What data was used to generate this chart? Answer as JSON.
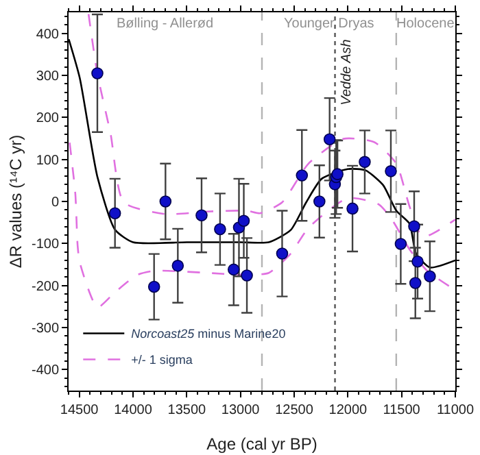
{
  "chart_data": {
    "type": "scatter",
    "xlabel": "Age (cal yr BP)",
    "ylabel": "ΔR values (¹⁴C yr)",
    "xlim": [
      14600,
      11000
    ],
    "xticks": [
      14500,
      14000,
      13500,
      13000,
      12500,
      12000,
      11500,
      11000
    ],
    "ylim": [
      -450,
      450
    ],
    "yticks": [
      -400,
      -300,
      -200,
      -100,
      0,
      100,
      200,
      300,
      400
    ],
    "grid": false,
    "legend": "bottom left",
    "series": [
      {
        "color": "#1010c8",
        "marker": "circle",
        "x": [
          14332,
          14168,
          13698,
          13362,
          13190,
          13014,
          12969,
          13804,
          13583,
          13063,
          12940,
          12612,
          12428,
          12265,
          12170,
          12121,
          12109,
          12097,
          11957,
          11843,
          11600,
          11383,
          11508,
          11351,
          11372,
          11237
        ],
        "values": [
          305,
          -28,
          0,
          -33,
          -66,
          -62,
          -46,
          -203,
          -153,
          -162,
          -176,
          -124,
          62,
          0,
          148,
          41,
          58,
          65,
          -17,
          94,
          72,
          -59,
          -101,
          -143,
          -194,
          -178
        ],
        "errors": [
          140,
          82,
          90,
          88,
          85,
          116,
          88,
          78,
          88,
          85,
          89,
          102,
          108,
          86,
          98,
          80,
          88,
          80,
          102,
          75,
          97,
          83,
          95,
          88,
          84,
          83
        ]
      },
      {
        "type": "line",
        "name": "Norcoast25 minus Marine20",
        "color": "#000000",
        "line_style": "solid",
        "marker": "none",
        "x": [
          14598,
          14496,
          14332,
          14168,
          14000,
          13500,
          13000,
          12736,
          12532,
          12388,
          12244,
          12002,
          11835,
          11672,
          11549,
          11426,
          11365,
          11237,
          11000
        ],
        "values": [
          386,
          294,
          59,
          -67,
          -97,
          -97,
          -97,
          -97,
          -68,
          -2,
          54,
          77,
          74,
          39,
          -22,
          -53,
          -124,
          -157,
          -140
        ]
      },
      {
        "type": "line",
        "name": "+/- 1 sigma",
        "color": "#e070e0",
        "line_style": "dashed",
        "marker": "none",
        "x": [
          14414,
          14332,
          14209,
          14086,
          13698,
          13308,
          12940,
          12817,
          12612,
          12367,
          12041,
          11754,
          11549,
          11426,
          11303,
          11000
        ],
        "values": [
          446,
          304,
          161,
          -2,
          -30,
          -24,
          -22,
          -28,
          -2,
          90,
          149,
          141,
          90,
          -12,
          -84,
          -43
        ]
      },
      {
        "type": "line",
        "color": "#e070e0",
        "line_style": "dashed",
        "marker": "none",
        "x": [
          14590,
          14537,
          14516,
          14496,
          14332,
          14168,
          13963,
          13800,
          13308,
          12940,
          12736,
          12532,
          12367,
          12002,
          11712,
          11590,
          11426,
          11262,
          11000
        ],
        "values": [
          140,
          18,
          -104,
          -145,
          -252,
          -216,
          -175,
          -165,
          -170,
          -175,
          -170,
          -124,
          -63,
          8,
          -7,
          -43,
          -114,
          -165,
          -211
        ]
      }
    ],
    "ref_lines": [
      {
        "axis": "x",
        "value": 12800,
        "color": "#b4b4b4",
        "line_style": "dashed"
      },
      {
        "axis": "x",
        "value": 11550,
        "color": "#b4b4b4",
        "line_style": "dashed"
      },
      {
        "axis": "x",
        "value": 12120,
        "color": "#555555",
        "line_style": "dotted",
        "label": "Vedde Ash"
      }
    ],
    "annotations": [
      "Bølling - Allerød",
      "Younger Dryas",
      "Holocene"
    ]
  }
}
